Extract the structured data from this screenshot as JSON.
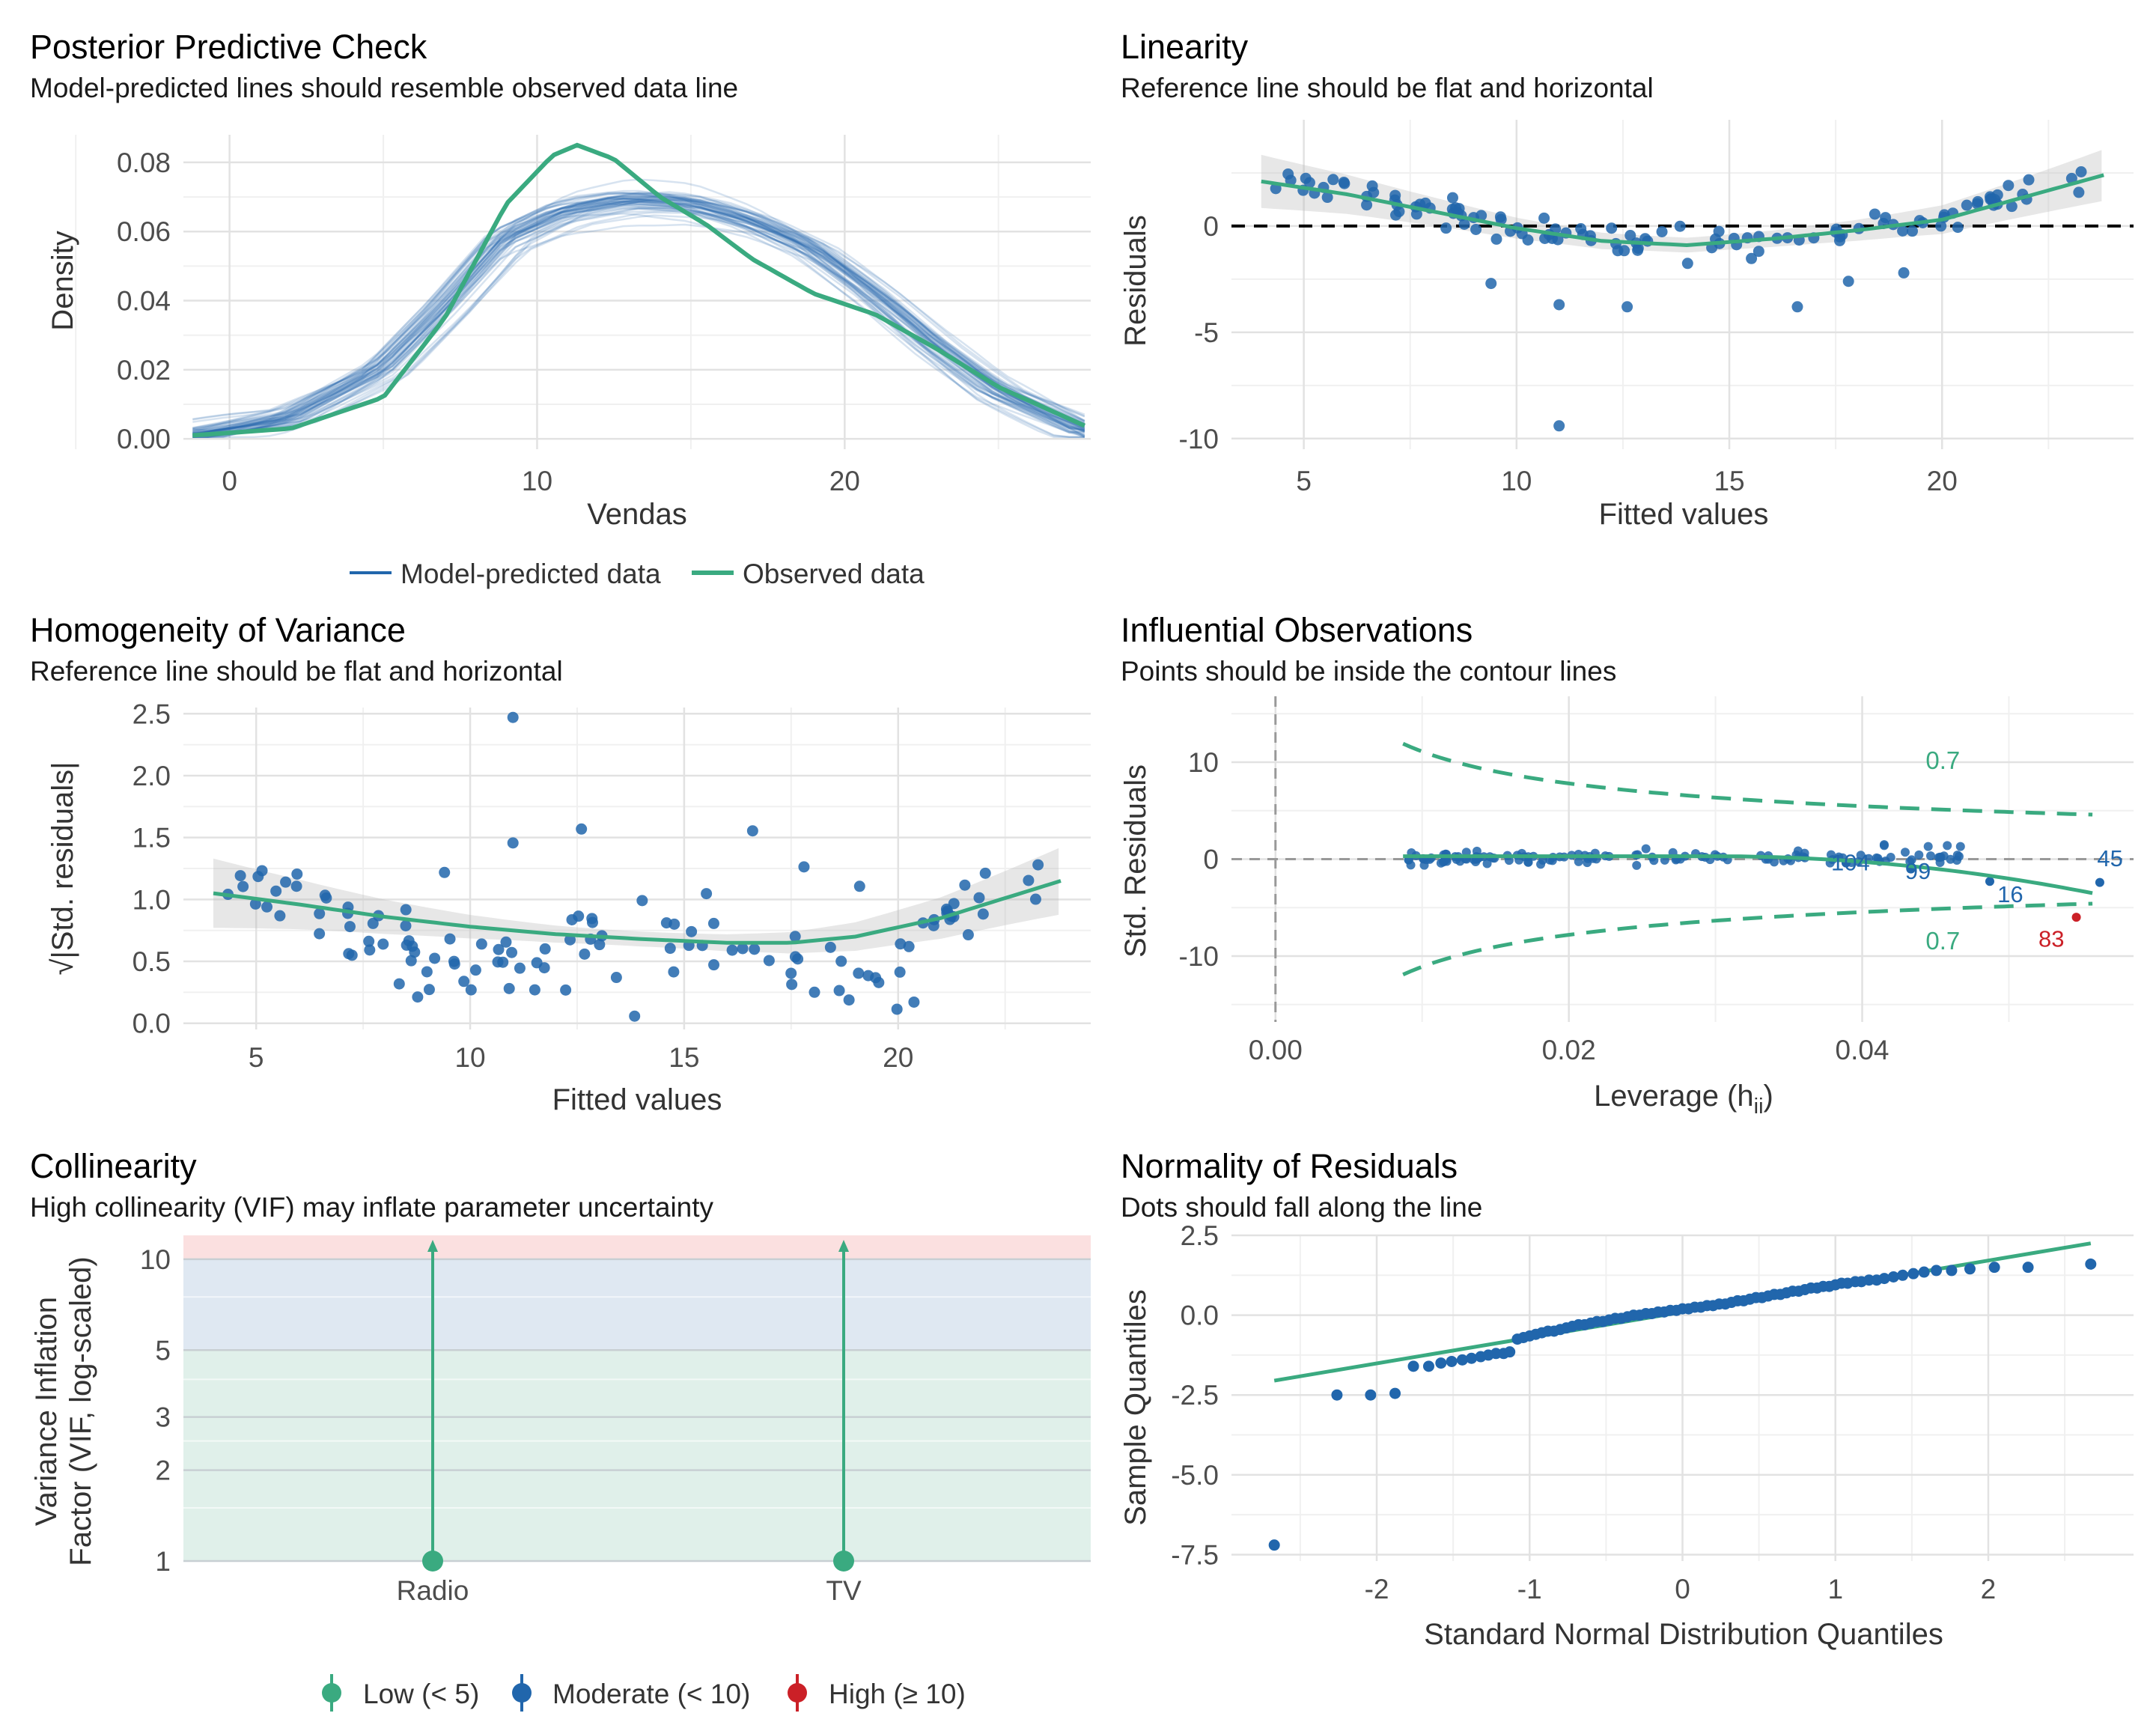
{
  "colors": {
    "green": "#3aaa80",
    "blue": "#2166ac",
    "red": "#cb2027",
    "grid": "#e2e2e2",
    "band_high": "#fbe0e0",
    "band_moderate": "#dfe8f2",
    "band_low": "#e0f0ea"
  },
  "chart_data": [
    {
      "id": "ppc",
      "type": "line",
      "title": "Posterior Predictive Check",
      "subtitle": "Model-predicted lines should resemble observed data line",
      "xlabel": "Vendas",
      "ylabel": "Density",
      "xlim": [
        -1.5,
        28
      ],
      "ylim": [
        -0.003,
        0.088
      ],
      "xticks": [
        0,
        10,
        20
      ],
      "yticks": [
        0.0,
        0.02,
        0.04,
        0.06,
        0.08
      ],
      "ytick_labels": [
        "0.00",
        "0.02",
        "0.04",
        "0.06",
        "0.08"
      ],
      "legend": [
        "Model-predicted data",
        "Observed data"
      ],
      "legend_position": "bottom",
      "series": [
        {
          "name": "Observed data",
          "x": [
            -1.2,
            2,
            5,
            7,
            9,
            10.5,
            11.3,
            12.5,
            14,
            15.5,
            17,
            19,
            21,
            23,
            25,
            28
          ],
          "values": [
            0.001,
            0.003,
            0.012,
            0.035,
            0.068,
            0.082,
            0.085,
            0.081,
            0.07,
            0.062,
            0.052,
            0.042,
            0.036,
            0.026,
            0.015,
            0.003
          ]
        },
        {
          "name": "Model-predicted data",
          "x": [
            -1.2,
            2,
            5,
            7,
            9,
            11,
            13,
            15,
            17,
            19,
            21,
            23,
            25,
            28
          ],
          "values": [
            0.001,
            0.006,
            0.02,
            0.038,
            0.058,
            0.066,
            0.069,
            0.068,
            0.063,
            0.055,
            0.042,
            0.027,
            0.014,
            0.002
          ]
        }
      ]
    },
    {
      "id": "linearity",
      "type": "scatter",
      "title": "Linearity",
      "subtitle": "Reference line should be flat and horizontal",
      "xlabel": "Fitted values",
      "ylabel": "Residuals",
      "xlim": [
        3.3,
        24.5
      ],
      "ylim": [
        -10.5,
        5
      ],
      "xticks": [
        5,
        10,
        15,
        20
      ],
      "yticks": [
        0,
        -5,
        -10
      ],
      "smooth": {
        "x": [
          4.0,
          6,
          8,
          10,
          12,
          14,
          16,
          18,
          20,
          22,
          23.8
        ],
        "values": [
          2.1,
          1.5,
          0.7,
          -0.1,
          -0.7,
          -0.9,
          -0.6,
          -0.2,
          0.3,
          1.4,
          2.4
        ]
      }
    },
    {
      "id": "homogeneity",
      "type": "scatter",
      "title": "Homogeneity of Variance",
      "subtitle": "Reference line should be flat and horizontal",
      "xlabel": "Fitted values",
      "ylabel": "√|Std. residuals|",
      "xlim": [
        3.3,
        24.5
      ],
      "ylim": [
        -0.05,
        2.55
      ],
      "xticks": [
        5,
        10,
        15,
        20
      ],
      "yticks": [
        0.0,
        0.5,
        1.0,
        1.5,
        2.0,
        2.5
      ],
      "ytick_labels": [
        "0.0",
        "0.5",
        "1.0",
        "1.5",
        "2.0",
        "2.5"
      ],
      "smooth": {
        "x": [
          4.0,
          6,
          8,
          10,
          12,
          14,
          16,
          17.5,
          19,
          21,
          23.8
        ],
        "values": [
          1.05,
          0.96,
          0.86,
          0.78,
          0.72,
          0.68,
          0.65,
          0.65,
          0.7,
          0.85,
          1.15
        ]
      }
    },
    {
      "id": "influence",
      "type": "scatter",
      "title": "Influential Observations",
      "subtitle": "Points should be inside the contour lines",
      "xlabel": "Leverage (h",
      "xlabel_sub": "ii",
      "xlabel_end": ")",
      "ylabel": "Std. Residuals",
      "xlim": [
        -0.003,
        0.0585
      ],
      "ylim": [
        -16.8,
        16.8
      ],
      "xticks": [
        0.0,
        0.02,
        0.04
      ],
      "xtick_labels": [
        "0.00",
        "0.02",
        "0.04"
      ],
      "yticks": [
        10,
        0,
        -10
      ],
      "contour_label": "0.7",
      "labeled_points": [
        {
          "label": "104",
          "x": 0.0389,
          "y": -0.4,
          "tx": 0.0392,
          "ty": -0.3,
          "high": false
        },
        {
          "label": "99",
          "x": 0.0434,
          "y": -0.9,
          "tx": 0.0438,
          "ty": -1.2,
          "high": false
        },
        {
          "label": "16",
          "x": 0.0487,
          "y": -2.3,
          "tx": 0.0501,
          "ty": -3.6,
          "high": false
        },
        {
          "label": "45",
          "x": 0.0562,
          "y": -2.4,
          "tx": 0.0569,
          "ty": 0.1,
          "high": false
        },
        {
          "label": "83",
          "x": 0.0546,
          "y": -6.0,
          "tx": 0.0529,
          "ty": -8.2,
          "high": true
        }
      ]
    },
    {
      "id": "collinearity",
      "type": "bar",
      "title": "Collinearity",
      "subtitle": "High collinearity (VIF) may inflate parameter uncertainty",
      "ylabel_line1": "Variance Inflation",
      "ylabel_line2": "Factor (VIF, log-scaled)",
      "categories": [
        "Radio",
        "TV"
      ],
      "values": [
        1.0,
        1.0
      ],
      "yscale": "log",
      "ylim": [
        1,
        12
      ],
      "yticks": [
        1,
        2,
        3,
        5,
        10
      ],
      "legend": [
        "Low (< 5)",
        "Moderate (< 10)",
        "High (≥ 10)"
      ],
      "legend_position": "bottom"
    },
    {
      "id": "qq",
      "type": "scatter",
      "title": "Normality of Residuals",
      "subtitle": "Dots should fall along the line",
      "xlabel": "Standard Normal Distribution Quantiles",
      "ylabel": "Sample Quantiles",
      "xlim": [
        -2.95,
        2.95
      ],
      "ylim": [
        -7.7,
        2.5
      ],
      "xticks": [
        -2,
        -1,
        0,
        1,
        2
      ],
      "yticks": [
        2.5,
        0.0,
        -2.5,
        -5.0,
        -7.5
      ],
      "ytick_labels": [
        "2.5",
        "0.0",
        "-2.5",
        "-5.0",
        "-7.5"
      ],
      "ref_line": {
        "x": [
          -2.67,
          2.67
        ],
        "values": [
          -2.05,
          2.25
        ]
      },
      "points": [
        [
          -2.67,
          -7.2
        ],
        [
          -2.26,
          -2.5
        ],
        [
          -2.04,
          -2.5
        ],
        [
          -1.88,
          -2.45
        ],
        [
          -1.76,
          -1.6
        ],
        [
          -1.66,
          -1.6
        ],
        [
          -1.58,
          -1.5
        ],
        [
          -1.51,
          -1.45
        ],
        [
          -1.44,
          -1.4
        ],
        [
          -1.38,
          -1.35
        ],
        [
          -1.32,
          -1.3
        ],
        [
          -1.27,
          -1.25
        ],
        [
          -1.22,
          -1.2
        ],
        [
          -1.17,
          -1.2
        ],
        [
          -1.13,
          -1.15
        ],
        [
          -1.08,
          -0.75
        ],
        [
          -1.04,
          -0.7
        ],
        [
          -1.0,
          -0.65
        ],
        [
          -0.96,
          -0.6
        ],
        [
          -0.92,
          -0.55
        ],
        [
          -0.88,
          -0.5
        ],
        [
          -0.84,
          -0.5
        ],
        [
          -0.8,
          -0.45
        ],
        [
          -0.76,
          -0.4
        ],
        [
          -0.72,
          -0.35
        ],
        [
          -0.68,
          -0.3
        ],
        [
          -0.64,
          -0.3
        ],
        [
          -0.6,
          -0.25
        ],
        [
          -0.56,
          -0.2
        ],
        [
          -0.52,
          -0.2
        ],
        [
          -0.48,
          -0.15
        ],
        [
          -0.44,
          -0.1
        ],
        [
          -0.4,
          -0.1
        ],
        [
          -0.36,
          -0.05
        ],
        [
          -0.32,
          0.0
        ],
        [
          -0.28,
          0.0
        ],
        [
          -0.24,
          0.05
        ],
        [
          -0.2,
          0.05
        ],
        [
          -0.16,
          0.1
        ],
        [
          -0.12,
          0.1
        ],
        [
          -0.08,
          0.15
        ],
        [
          -0.04,
          0.15
        ],
        [
          0.0,
          0.2
        ],
        [
          0.04,
          0.2
        ],
        [
          0.08,
          0.25
        ],
        [
          0.12,
          0.25
        ],
        [
          0.16,
          0.3
        ],
        [
          0.2,
          0.3
        ],
        [
          0.24,
          0.35
        ],
        [
          0.28,
          0.35
        ],
        [
          0.32,
          0.4
        ],
        [
          0.36,
          0.45
        ],
        [
          0.4,
          0.45
        ],
        [
          0.44,
          0.5
        ],
        [
          0.48,
          0.55
        ],
        [
          0.52,
          0.55
        ],
        [
          0.56,
          0.6
        ],
        [
          0.6,
          0.65
        ],
        [
          0.64,
          0.65
        ],
        [
          0.68,
          0.7
        ],
        [
          0.72,
          0.75
        ],
        [
          0.76,
          0.75
        ],
        [
          0.8,
          0.8
        ],
        [
          0.84,
          0.85
        ],
        [
          0.88,
          0.85
        ],
        [
          0.92,
          0.9
        ],
        [
          0.96,
          0.9
        ],
        [
          1.0,
          0.95
        ],
        [
          1.04,
          1.0
        ],
        [
          1.08,
          1.0
        ],
        [
          1.13,
          1.05
        ],
        [
          1.17,
          1.05
        ],
        [
          1.22,
          1.1
        ],
        [
          1.27,
          1.1
        ],
        [
          1.32,
          1.15
        ],
        [
          1.38,
          1.2
        ],
        [
          1.44,
          1.25
        ],
        [
          1.51,
          1.3
        ],
        [
          1.58,
          1.35
        ],
        [
          1.66,
          1.4
        ],
        [
          1.76,
          1.4
        ],
        [
          1.88,
          1.45
        ],
        [
          2.04,
          1.5
        ],
        [
          2.26,
          1.5
        ],
        [
          2.67,
          1.6
        ]
      ]
    }
  ]
}
